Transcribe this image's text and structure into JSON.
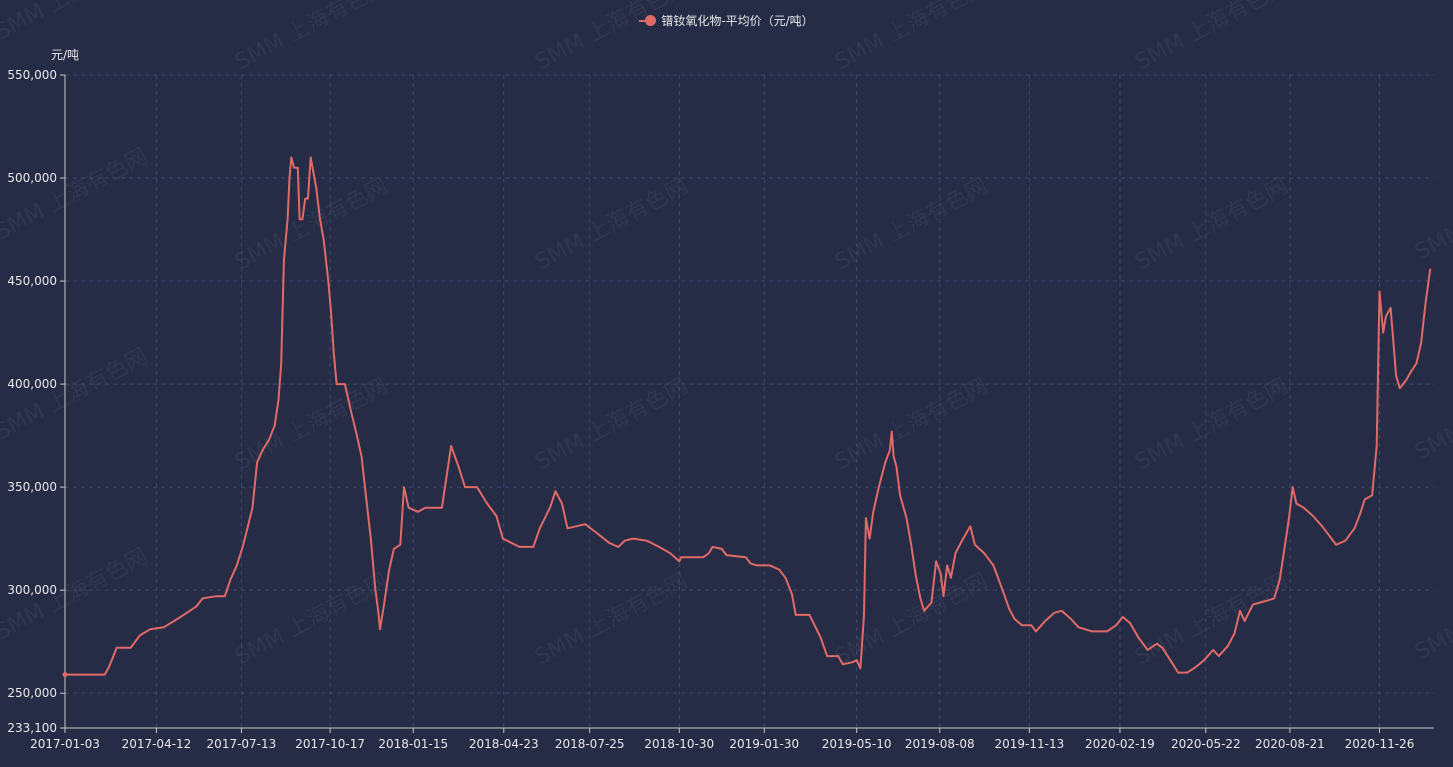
{
  "legend": {
    "series_label": "镨钕氧化物-平均价（元/吨）"
  },
  "watermark": {
    "text": "SMM 上海有色网"
  },
  "colors": {
    "background": "#262b46",
    "series": "#e06b66",
    "grid": "#3c4a6e",
    "axis": "#c8c8c8",
    "text": "#e8e8e8"
  },
  "chart_data": {
    "type": "line",
    "ylabel": "元/吨",
    "ylim": [
      233100,
      550000
    ],
    "y_ticks": [
      233100,
      250000,
      300000,
      350000,
      400000,
      450000,
      500000,
      550000
    ],
    "x_tick_labels": [
      "2017-01-03",
      "2017-04-12",
      "2017-07-13",
      "2017-10-17",
      "2018-01-15",
      "2018-04-23",
      "2018-07-25",
      "2018-10-30",
      "2019-01-30",
      "2019-05-10",
      "2019-08-08",
      "2019-11-13",
      "2020-02-19",
      "2020-05-22",
      "2020-08-21",
      "2020-11-26"
    ],
    "grid": true,
    "legend_position": "top-center",
    "series": [
      {
        "name": "镨钕氧化物-平均价（元/吨）",
        "points": [
          [
            "2017-01-03",
            259000
          ],
          [
            "2017-02-15",
            259000
          ],
          [
            "2017-02-20",
            263000
          ],
          [
            "2017-02-28",
            272000
          ],
          [
            "2017-03-15",
            272000
          ],
          [
            "2017-03-25",
            278000
          ],
          [
            "2017-04-05",
            281000
          ],
          [
            "2017-04-20",
            282000
          ],
          [
            "2017-05-01",
            285000
          ],
          [
            "2017-05-15",
            289000
          ],
          [
            "2017-05-25",
            292000
          ],
          [
            "2017-06-01",
            296000
          ],
          [
            "2017-06-15",
            297000
          ],
          [
            "2017-06-25",
            297000
          ],
          [
            "2017-07-01",
            305000
          ],
          [
            "2017-07-08",
            312000
          ],
          [
            "2017-07-15",
            322000
          ],
          [
            "2017-07-25",
            340000
          ],
          [
            "2017-07-30",
            362000
          ],
          [
            "2017-08-05",
            368000
          ],
          [
            "2017-08-12",
            373000
          ],
          [
            "2017-08-18",
            380000
          ],
          [
            "2017-08-22",
            392000
          ],
          [
            "2017-08-25",
            410000
          ],
          [
            "2017-08-28",
            460000
          ],
          [
            "2017-09-01",
            480000
          ],
          [
            "2017-09-03",
            500000
          ],
          [
            "2017-09-05",
            510000
          ],
          [
            "2017-09-08",
            505000
          ],
          [
            "2017-09-12",
            505000
          ],
          [
            "2017-09-14",
            480000
          ],
          [
            "2017-09-17",
            480000
          ],
          [
            "2017-09-20",
            490000
          ],
          [
            "2017-09-23",
            490000
          ],
          [
            "2017-09-26",
            510000
          ],
          [
            "2017-10-02",
            495000
          ],
          [
            "2017-10-06",
            480000
          ],
          [
            "2017-10-10",
            470000
          ],
          [
            "2017-10-15",
            450000
          ],
          [
            "2017-10-18",
            435000
          ],
          [
            "2017-10-21",
            415000
          ],
          [
            "2017-10-24",
            400000
          ],
          [
            "2017-11-02",
            400000
          ],
          [
            "2017-11-08",
            388000
          ],
          [
            "2017-11-15",
            375000
          ],
          [
            "2017-11-20",
            365000
          ],
          [
            "2017-11-25",
            345000
          ],
          [
            "2017-11-30",
            325000
          ],
          [
            "2017-12-05",
            300000
          ],
          [
            "2017-12-08",
            290000
          ],
          [
            "2017-12-10",
            281000
          ],
          [
            "2017-12-14",
            292000
          ],
          [
            "2017-12-20",
            310000
          ],
          [
            "2017-12-25",
            320000
          ],
          [
            "2018-01-01",
            322000
          ],
          [
            "2018-01-05",
            350000
          ],
          [
            "2018-01-10",
            340000
          ],
          [
            "2018-01-20",
            338000
          ],
          [
            "2018-01-28",
            340000
          ],
          [
            "2018-02-15",
            340000
          ],
          [
            "2018-02-20",
            355000
          ],
          [
            "2018-02-25",
            370000
          ],
          [
            "2018-03-05",
            360000
          ],
          [
            "2018-03-12",
            350000
          ],
          [
            "2018-03-25",
            350000
          ],
          [
            "2018-04-05",
            342000
          ],
          [
            "2018-04-15",
            336000
          ],
          [
            "2018-04-22",
            325000
          ],
          [
            "2018-05-01",
            323000
          ],
          [
            "2018-05-10",
            321000
          ],
          [
            "2018-05-25",
            321000
          ],
          [
            "2018-06-01",
            330000
          ],
          [
            "2018-06-12",
            340000
          ],
          [
            "2018-06-18",
            348000
          ],
          [
            "2018-06-25",
            342000
          ],
          [
            "2018-07-01",
            330000
          ],
          [
            "2018-07-20",
            332000
          ],
          [
            "2018-08-01",
            328000
          ],
          [
            "2018-08-15",
            323000
          ],
          [
            "2018-08-25",
            321000
          ],
          [
            "2018-09-01",
            324000
          ],
          [
            "2018-09-10",
            325000
          ],
          [
            "2018-09-25",
            324000
          ],
          [
            "2018-10-08",
            321000
          ],
          [
            "2018-10-20",
            318000
          ],
          [
            "2018-10-30",
            314000
          ],
          [
            "2018-11-01",
            316000
          ],
          [
            "2018-11-25",
            316000
          ],
          [
            "2018-12-01",
            318000
          ],
          [
            "2018-12-05",
            321000
          ],
          [
            "2018-12-15",
            320000
          ],
          [
            "2018-12-20",
            317000
          ],
          [
            "2019-01-10",
            316000
          ],
          [
            "2019-01-15",
            313000
          ],
          [
            "2019-01-22",
            312000
          ],
          [
            "2019-02-05",
            312000
          ],
          [
            "2019-02-15",
            310000
          ],
          [
            "2019-02-22",
            306000
          ],
          [
            "2019-03-01",
            298000
          ],
          [
            "2019-03-05",
            288000
          ],
          [
            "2019-03-20",
            288000
          ],
          [
            "2019-04-01",
            277000
          ],
          [
            "2019-04-08",
            268000
          ],
          [
            "2019-04-20",
            268000
          ],
          [
            "2019-04-25",
            264000
          ],
          [
            "2019-05-05",
            265000
          ],
          [
            "2019-05-10",
            266000
          ],
          [
            "2019-05-14",
            262000
          ],
          [
            "2019-05-18",
            288000
          ],
          [
            "2019-05-20",
            335000
          ],
          [
            "2019-05-24",
            325000
          ],
          [
            "2019-05-28",
            338000
          ],
          [
            "2019-06-03",
            350000
          ],
          [
            "2019-06-10",
            362000
          ],
          [
            "2019-06-15",
            368000
          ],
          [
            "2019-06-17",
            377000
          ],
          [
            "2019-06-19",
            365000
          ],
          [
            "2019-06-22",
            360000
          ],
          [
            "2019-06-26",
            346000
          ],
          [
            "2019-07-03",
            335000
          ],
          [
            "2019-07-08",
            322000
          ],
          [
            "2019-07-13",
            307000
          ],
          [
            "2019-07-18",
            296000
          ],
          [
            "2019-07-22",
            290000
          ],
          [
            "2019-07-30",
            294000
          ],
          [
            "2019-08-04",
            314000
          ],
          [
            "2019-08-09",
            308000
          ],
          [
            "2019-08-12",
            297000
          ],
          [
            "2019-08-16",
            312000
          ],
          [
            "2019-08-20",
            306000
          ],
          [
            "2019-08-25",
            318000
          ],
          [
            "2019-09-01",
            324000
          ],
          [
            "2019-09-06",
            328000
          ],
          [
            "2019-09-10",
            331000
          ],
          [
            "2019-09-15",
            322000
          ],
          [
            "2019-09-25",
            318000
          ],
          [
            "2019-10-05",
            312000
          ],
          [
            "2019-10-15",
            300000
          ],
          [
            "2019-10-22",
            291000
          ],
          [
            "2019-10-28",
            286000
          ],
          [
            "2019-11-05",
            283000
          ],
          [
            "2019-11-15",
            283000
          ],
          [
            "2019-11-20",
            280000
          ],
          [
            "2019-11-30",
            285000
          ],
          [
            "2019-12-10",
            289000
          ],
          [
            "2019-12-18",
            290000
          ],
          [
            "2019-12-28",
            286000
          ],
          [
            "2020-01-05",
            282000
          ],
          [
            "2020-01-20",
            280000
          ],
          [
            "2020-02-05",
            280000
          ],
          [
            "2020-02-15",
            283000
          ],
          [
            "2020-02-22",
            287000
          ],
          [
            "2020-03-01",
            284000
          ],
          [
            "2020-03-10",
            277000
          ],
          [
            "2020-03-20",
            271000
          ],
          [
            "2020-03-30",
            274000
          ],
          [
            "2020-04-05",
            272000
          ],
          [
            "2020-04-15",
            265000
          ],
          [
            "2020-04-22",
            260000
          ],
          [
            "2020-05-02",
            260000
          ],
          [
            "2020-05-12",
            263000
          ],
          [
            "2020-05-20",
            266000
          ],
          [
            "2020-05-30",
            271000
          ],
          [
            "2020-06-05",
            268000
          ],
          [
            "2020-06-15",
            273000
          ],
          [
            "2020-06-22",
            279000
          ],
          [
            "2020-06-28",
            290000
          ],
          [
            "2020-07-03",
            285000
          ],
          [
            "2020-07-12",
            293000
          ],
          [
            "2020-07-20",
            294000
          ],
          [
            "2020-07-28",
            295000
          ],
          [
            "2020-08-04",
            296000
          ],
          [
            "2020-08-10",
            305000
          ],
          [
            "2020-08-15",
            320000
          ],
          [
            "2020-08-20",
            335000
          ],
          [
            "2020-08-24",
            350000
          ],
          [
            "2020-08-28",
            342000
          ],
          [
            "2020-09-05",
            340000
          ],
          [
            "2020-09-15",
            336000
          ],
          [
            "2020-09-25",
            331000
          ],
          [
            "2020-10-05",
            325000
          ],
          [
            "2020-10-10",
            322000
          ],
          [
            "2020-10-20",
            324000
          ],
          [
            "2020-10-30",
            330000
          ],
          [
            "2020-11-05",
            337000
          ],
          [
            "2020-11-10",
            344000
          ],
          [
            "2020-11-18",
            346000
          ],
          [
            "2020-11-23",
            370000
          ],
          [
            "2020-11-26",
            445000
          ],
          [
            "2020-11-30",
            425000
          ],
          [
            "2020-12-03",
            433000
          ],
          [
            "2020-12-08",
            437000
          ],
          [
            "2020-12-14",
            404000
          ],
          [
            "2020-12-18",
            398000
          ],
          [
            "2020-12-25",
            402000
          ],
          [
            "2020-12-30",
            406000
          ],
          [
            "2021-01-05",
            410000
          ],
          [
            "2021-01-10",
            420000
          ],
          [
            "2021-01-15",
            440000
          ],
          [
            "2021-01-20",
            456000
          ]
        ]
      }
    ]
  }
}
